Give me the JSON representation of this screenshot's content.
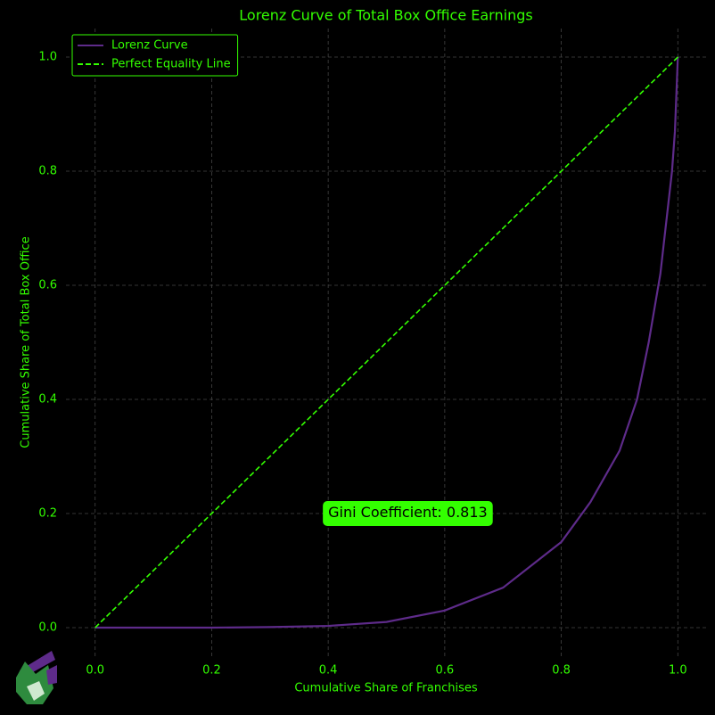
{
  "chart_data": {
    "type": "line",
    "title": "Lorenz Curve of Total Box Office Earnings",
    "xlabel": "Cumulative Share of Franchises",
    "ylabel": "Cumulative Share of Total Box Office",
    "xlim": [
      -0.05,
      1.05
    ],
    "ylim": [
      -0.05,
      1.05
    ],
    "xticks": [
      {
        "value": 0,
        "label": "0.0"
      },
      0.2,
      0.4,
      0.6,
      0.8,
      {
        "value": 1,
        "label": "1.0"
      }
    ],
    "yticks": [
      {
        "value": 0,
        "label": "0.0"
      },
      0.2,
      0.4,
      0.6,
      0.8,
      {
        "value": 1,
        "label": "1.0"
      }
    ],
    "grid": true,
    "legend": "upper left",
    "series": [
      {
        "name": "Lorenz Curve",
        "color": "#5e2b8a",
        "linestyle": "solid",
        "x": [
          0,
          0.1,
          0.2,
          0.3,
          0.4,
          0.5,
          0.6,
          0.7,
          0.8,
          0.85,
          0.9,
          0.93,
          0.95,
          0.97,
          0.98,
          0.99,
          0.995,
          1.0
        ],
        "values": [
          0,
          0,
          0,
          0.001,
          0.003,
          0.01,
          0.03,
          0.07,
          0.15,
          0.22,
          0.31,
          0.4,
          0.5,
          0.62,
          0.71,
          0.8,
          0.87,
          1.0
        ]
      },
      {
        "name": "Perfect Equality Line",
        "color": "#33ff00",
        "linestyle": "dashed",
        "x": [
          0,
          1
        ],
        "values": [
          0,
          1
        ]
      }
    ],
    "annotations": [
      {
        "text": "Gini Coefficient: 0.813",
        "x": 0.4,
        "y": 0.2,
        "color": "#33ff00"
      }
    ]
  }
}
